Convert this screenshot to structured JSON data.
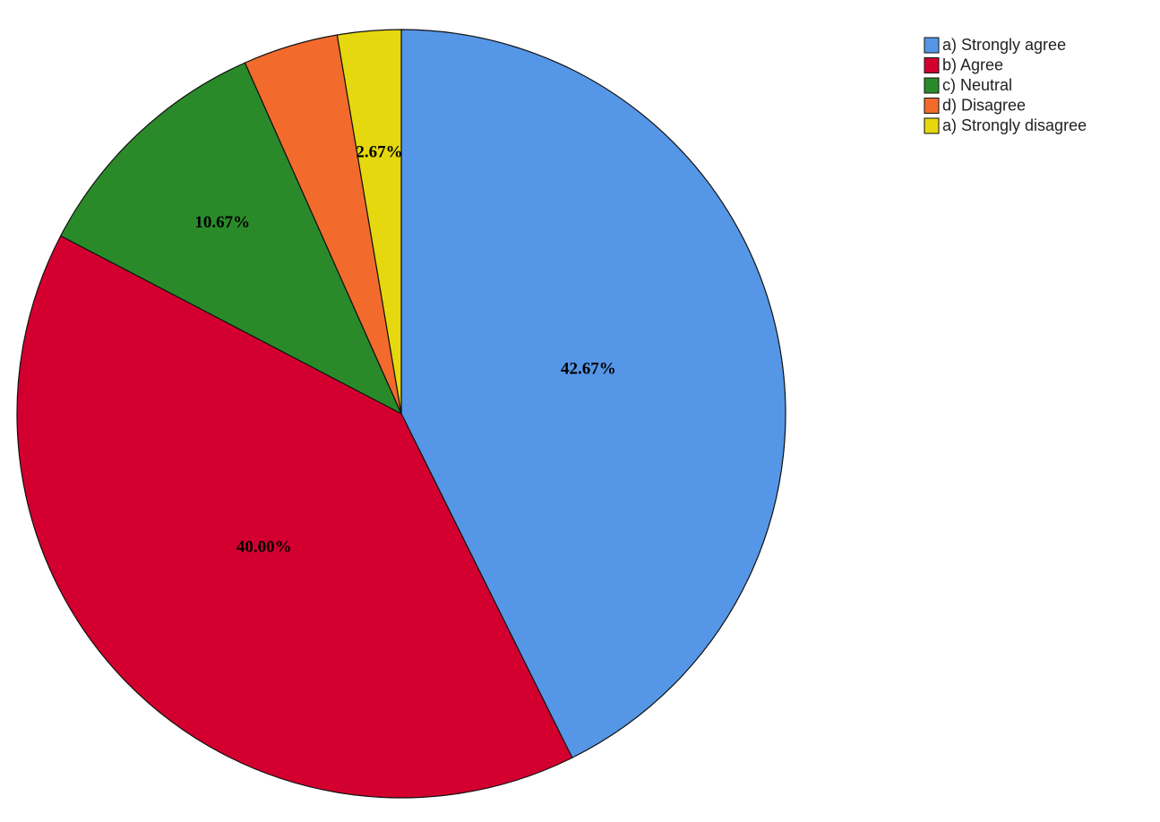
{
  "chart_data": {
    "type": "pie",
    "categories": [
      "a) Strongly agree",
      "b) Agree",
      "c) Neutral",
      "d) Disagree",
      "a) Strongly disagree"
    ],
    "values": [
      42.67,
      40.0,
      10.67,
      4.0,
      2.67
    ],
    "value_labels": [
      "42.67%",
      "40.00%",
      "10.67%",
      null,
      "2.67%"
    ],
    "colors": [
      "#5596e6",
      "#d3002f",
      "#2a8a2a",
      "#f26b2c",
      "#e5d80f"
    ],
    "legend": "top-right"
  }
}
